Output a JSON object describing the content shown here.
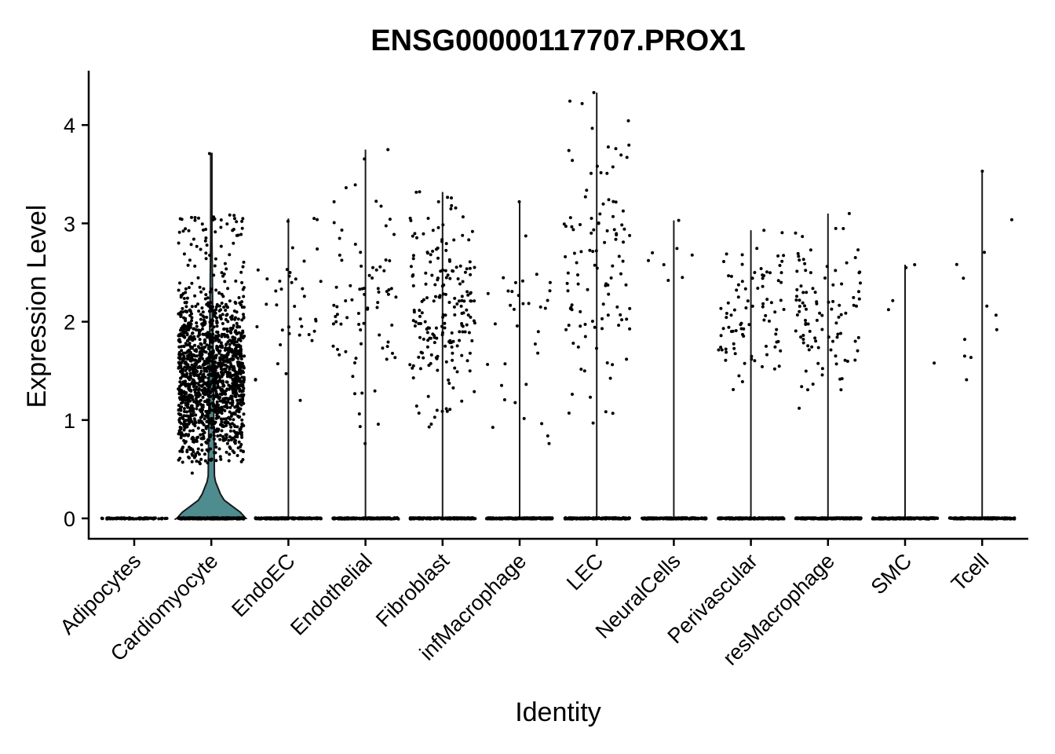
{
  "chart_data": {
    "type": "violin",
    "title": "ENSG00000117707.PROX1",
    "xlabel": "Identity",
    "ylabel": "Expression Level",
    "ylim": [
      -0.2,
      4.55
    ],
    "yticks": [
      0,
      1,
      2,
      3,
      4
    ],
    "grid": false,
    "legend": "none",
    "violin_fill": "#4e8c90",
    "point_color": "#000000",
    "categories": [
      "Adipocytes",
      "Cardiomyocyte",
      "EndoEC",
      "Endothelial",
      "Fibroblast",
      "infMacrophage",
      "LEC",
      "NeuralCells",
      "Perivascular",
      "resMacrophage",
      "SMC",
      "Tcell"
    ],
    "series": [
      {
        "category": "Adipocytes",
        "max": 0.0,
        "zero_cells": 90,
        "nonzero_range": [
          0,
          0
        ],
        "nonzero_count": 0
      },
      {
        "category": "Cardiomyocyte",
        "max": 3.71,
        "zero_cells": 300,
        "nonzero_range": [
          0.46,
          3.71
        ],
        "nonzero_count": 1500
      },
      {
        "category": "EndoEC",
        "max": 3.05,
        "zero_cells": 200,
        "nonzero_range": [
          1.2,
          3.05
        ],
        "nonzero_count": 40
      },
      {
        "category": "Endothelial",
        "max": 3.75,
        "zero_cells": 200,
        "nonzero_range": [
          0.76,
          3.75
        ],
        "nonzero_count": 80
      },
      {
        "category": "Fibroblast",
        "max": 3.32,
        "zero_cells": 250,
        "nonzero_range": [
          0.93,
          3.32
        ],
        "nonzero_count": 200
      },
      {
        "category": "infMacrophage",
        "max": 3.22,
        "zero_cells": 200,
        "nonzero_range": [
          0.76,
          3.22
        ],
        "nonzero_count": 35
      },
      {
        "category": "LEC",
        "max": 4.33,
        "zero_cells": 200,
        "nonzero_range": [
          0.97,
          4.33
        ],
        "nonzero_count": 110
      },
      {
        "category": "NeuralCells",
        "max": 3.03,
        "zero_cells": 200,
        "nonzero_range": [
          2.42,
          3.03
        ],
        "nonzero_count": 8
      },
      {
        "category": "Perivascular",
        "max": 2.93,
        "zero_cells": 220,
        "nonzero_range": [
          1.31,
          2.93
        ],
        "nonzero_count": 90
      },
      {
        "category": "resMacrophage",
        "max": 3.1,
        "zero_cells": 220,
        "nonzero_range": [
          1.12,
          3.1
        ],
        "nonzero_count": 100
      },
      {
        "category": "SMC",
        "max": 2.58,
        "zero_cells": 180,
        "nonzero_range": [
          1.58,
          2.58
        ],
        "nonzero_count": 5
      },
      {
        "category": "Tcell",
        "max": 3.53,
        "zero_cells": 180,
        "nonzero_range": [
          1.41,
          3.53
        ],
        "nonzero_count": 12
      }
    ]
  }
}
